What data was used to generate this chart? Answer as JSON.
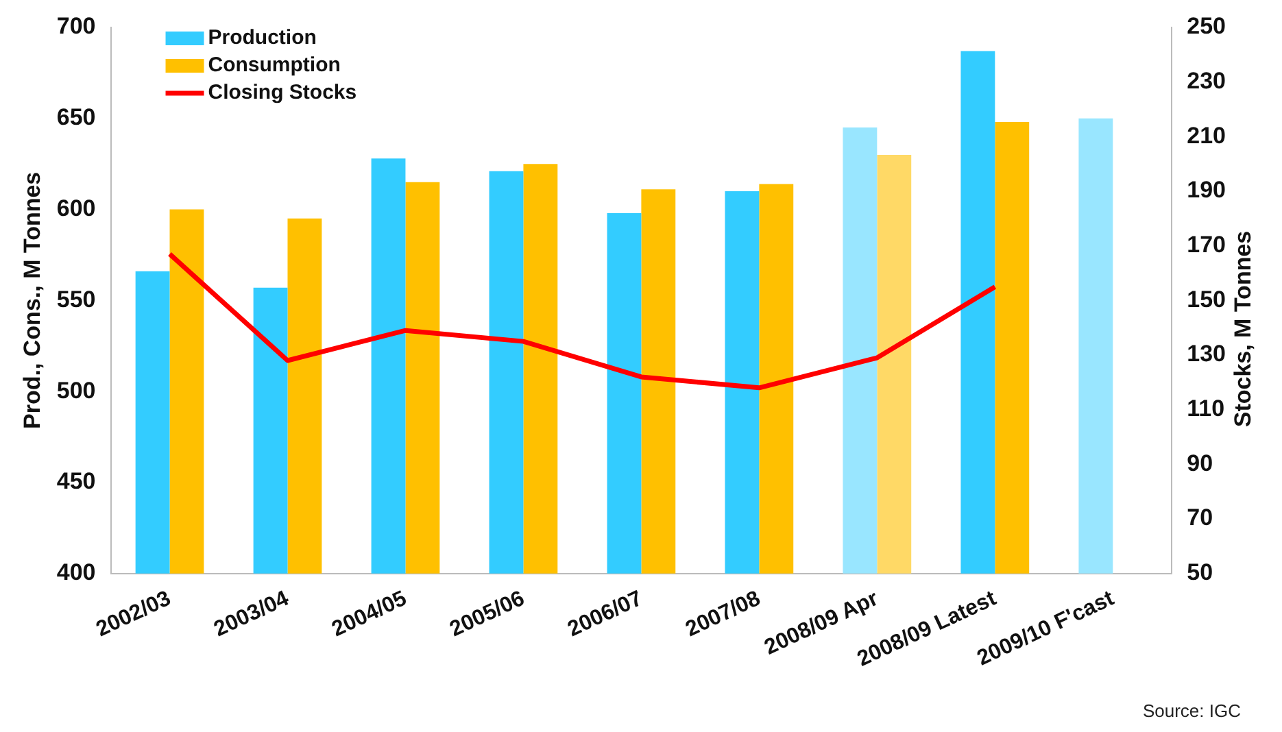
{
  "chart_data": {
    "type": "bar",
    "categories": [
      "2002/03",
      "2003/04",
      "2004/05",
      "2005/06",
      "2006/07",
      "2007/08",
      "2008/09 Apr",
      "2008/09 Latest",
      "2009/10 F'cast"
    ],
    "series": [
      {
        "name": "Production",
        "color": "#33ccff",
        "colors": [
          "#33ccff",
          "#33ccff",
          "#33ccff",
          "#33ccff",
          "#33ccff",
          "#33ccff",
          "#99e6ff",
          "#33ccff",
          "#99e6ff"
        ],
        "values": [
          566,
          557,
          628,
          621,
          598,
          610,
          645,
          687,
          650
        ]
      },
      {
        "name": "Consumption",
        "color": "#ffc000",
        "colors": [
          "#ffc000",
          "#ffc000",
          "#ffc000",
          "#ffc000",
          "#ffc000",
          "#ffc000",
          "#ffd966",
          "#ffc000",
          "#ffc000"
        ],
        "values": [
          600,
          595,
          615,
          625,
          611,
          614,
          630,
          648,
          null
        ]
      },
      {
        "name": "Closing Stocks",
        "type": "line",
        "axis": "y2",
        "color": "#ff0000",
        "values": [
          167,
          128,
          139,
          135,
          122,
          118,
          129,
          155,
          null
        ]
      }
    ],
    "ylabel": "Prod., Cons., M Tonnes",
    "y2label": "Stocks, M Tonnes",
    "ylim": [
      400,
      700
    ],
    "yticks": [
      400,
      450,
      500,
      550,
      600,
      650,
      700
    ],
    "y2lim": [
      50,
      250
    ],
    "y2ticks": [
      50,
      70,
      90,
      110,
      130,
      150,
      170,
      190,
      210,
      230,
      250
    ],
    "legend": "top left",
    "marker": "none",
    "annotations": [
      "Source: IGC"
    ]
  }
}
